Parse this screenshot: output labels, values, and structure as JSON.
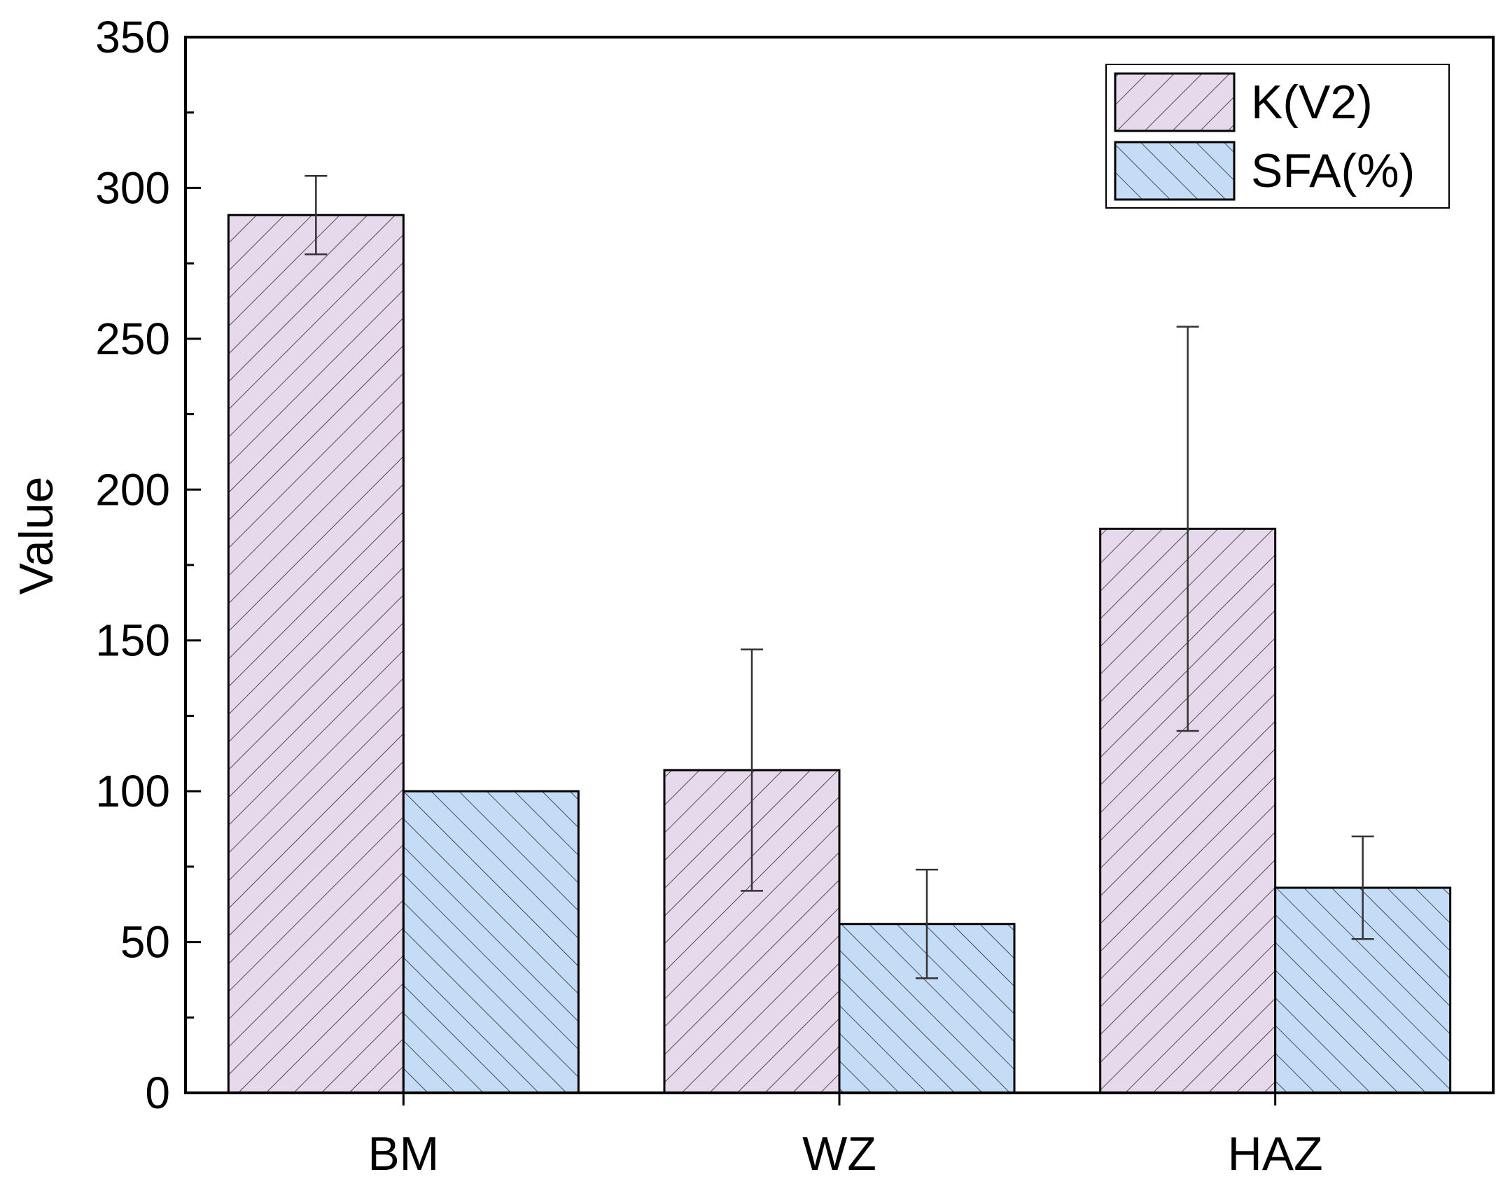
{
  "chart_data": {
    "type": "bar",
    "title": "",
    "xlabel": "",
    "ylabel": "Value",
    "ylim": [
      0,
      350
    ],
    "yticks": [
      0,
      50,
      100,
      150,
      200,
      250,
      300,
      350
    ],
    "categories": [
      "BM",
      "WZ",
      "HAZ"
    ],
    "series": [
      {
        "name": "K(V2)",
        "values": [
          291,
          107,
          187
        ],
        "err_low": [
          278,
          67,
          120
        ],
        "err_high": [
          304,
          147,
          254
        ],
        "color": "#e6d9ec",
        "hatch": "forward-diagonal"
      },
      {
        "name": "SFA(%)",
        "values": [
          100,
          56,
          68
        ],
        "err_low": [
          null,
          38,
          51
        ],
        "err_high": [
          null,
          74,
          85
        ],
        "color": "#c5dcf6",
        "hatch": "back-diagonal"
      }
    ],
    "legend": "top-right",
    "grid": false
  }
}
